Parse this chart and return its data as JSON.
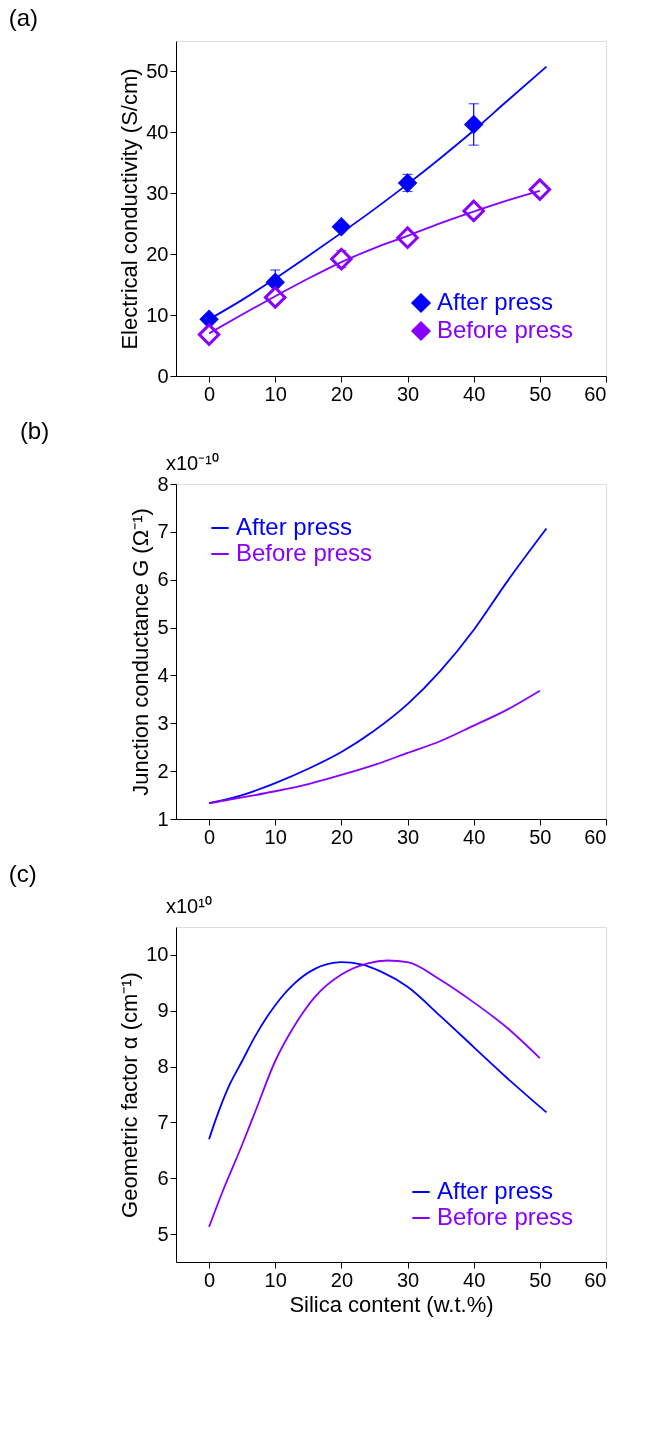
{
  "chart_data": [
    {
      "type": "scatter",
      "title": "(a)",
      "ylabel": "Electrical conductivity (S/cm)",
      "xlim": [
        -5,
        60
      ],
      "xticks": [
        0,
        10,
        20,
        30,
        40,
        50,
        60
      ],
      "ylim": [
        0,
        55
      ],
      "yticks": [
        0,
        10,
        20,
        30,
        40,
        50
      ],
      "grid": false,
      "legend": "bottom right",
      "marker": "diamond",
      "series": [
        {
          "name": "After press",
          "color": "#0000ff",
          "x": [
            0,
            10,
            20,
            30,
            40
          ],
          "values": [
            9.3,
            15.4,
            24.5,
            31.7,
            41.3
          ],
          "errors": [
            null,
            2.0,
            null,
            1.4,
            3.4
          ]
        },
        {
          "name": "Before press",
          "color": "#8800ff",
          "x": [
            0,
            10,
            20,
            30,
            40,
            50
          ],
          "values": [
            6.8,
            12.9,
            19.2,
            22.7,
            27.1,
            30.6
          ],
          "errors": [
            null,
            null,
            1.4,
            null,
            null,
            null
          ]
        },
        {
          "type": "line",
          "marker": "none",
          "color": "#0000ff",
          "x": [
            0,
            5,
            10,
            15,
            20,
            25,
            30,
            35,
            40,
            45,
            51
          ],
          "values": [
            9.3,
            12.5,
            16.0,
            19.7,
            23.5,
            27.4,
            31.5,
            35.8,
            40.3,
            45.1,
            50.8
          ]
        },
        {
          "type": "line",
          "marker": "none",
          "color": "#8800ff",
          "x": [
            0,
            5,
            10,
            15,
            20,
            25,
            30,
            35,
            40,
            45,
            50
          ],
          "values": [
            7.0,
            10.1,
            13.1,
            16.0,
            18.7,
            21.0,
            23.0,
            25.1,
            27.0,
            28.8,
            30.4
          ]
        }
      ]
    },
    {
      "type": "line",
      "title": "(b)",
      "ylabel": "Junction conductance G (Ω⁻¹)",
      "annotations": [
        "x10⁻¹⁰"
      ],
      "xlim": [
        -5,
        60
      ],
      "xticks": [
        0,
        10,
        20,
        30,
        40,
        50,
        60
      ],
      "ylim": [
        1,
        8
      ],
      "yticks": [
        1,
        2,
        3,
        4,
        5,
        6,
        7,
        8
      ],
      "grid": false,
      "legend": "top left",
      "series": [
        {
          "name": "After press",
          "color": "#0000ff",
          "x": [
            0,
            5,
            10,
            15,
            20,
            25,
            30,
            35,
            40,
            45,
            51
          ],
          "values": [
            1.33,
            1.5,
            1.75,
            2.05,
            2.4,
            2.85,
            3.4,
            4.1,
            4.95,
            5.95,
            7.07
          ]
        },
        {
          "name": "Before press",
          "color": "#8800ff",
          "x": [
            0,
            5,
            10,
            15,
            20,
            25,
            30,
            35,
            40,
            45,
            50
          ],
          "values": [
            1.33,
            1.45,
            1.58,
            1.73,
            1.92,
            2.13,
            2.38,
            2.63,
            2.95,
            3.28,
            3.68
          ]
        }
      ]
    },
    {
      "type": "line",
      "title": "(c)",
      "xlabel": "Silica content (w.t.%)",
      "ylabel": "Geometric factor α (cm⁻¹)",
      "annotations": [
        "x10¹⁰"
      ],
      "xlim": [
        -5,
        60
      ],
      "xticks": [
        0,
        10,
        20,
        30,
        40,
        50,
        60
      ],
      "ylim": [
        4.5,
        10.5
      ],
      "yticks": [
        5,
        6,
        7,
        8,
        9,
        10
      ],
      "grid": false,
      "legend": "bottom right",
      "series": [
        {
          "name": "After press",
          "color": "#0000ff",
          "x": [
            0,
            1,
            3,
            5,
            7,
            10,
            13,
            16,
            20,
            23,
            26,
            30,
            35,
            40,
            45,
            51
          ],
          "values": [
            6.7,
            7.05,
            7.65,
            8.1,
            8.55,
            9.1,
            9.5,
            9.75,
            9.87,
            9.83,
            9.7,
            9.43,
            8.9,
            8.35,
            7.8,
            7.18
          ]
        },
        {
          "name": "Before press",
          "color": "#8800ff",
          "x": [
            0,
            2,
            5,
            7,
            10,
            13,
            16,
            20,
            24,
            27,
            30,
            35,
            40,
            45,
            50
          ],
          "values": [
            5.13,
            5.75,
            6.6,
            7.2,
            8.1,
            8.75,
            9.25,
            9.65,
            9.85,
            9.9,
            9.87,
            9.55,
            9.15,
            8.7,
            8.15
          ]
        }
      ]
    }
  ]
}
